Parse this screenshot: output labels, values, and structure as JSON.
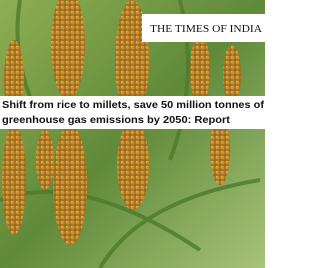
{
  "logo": "THE TIMES OF INDIA",
  "headline": {
    "lines": [
      "Shift from rice to millets, save 50 million tonnes of",
      "greenhouse gas emissions by 2050: Report"
    ]
  }
}
